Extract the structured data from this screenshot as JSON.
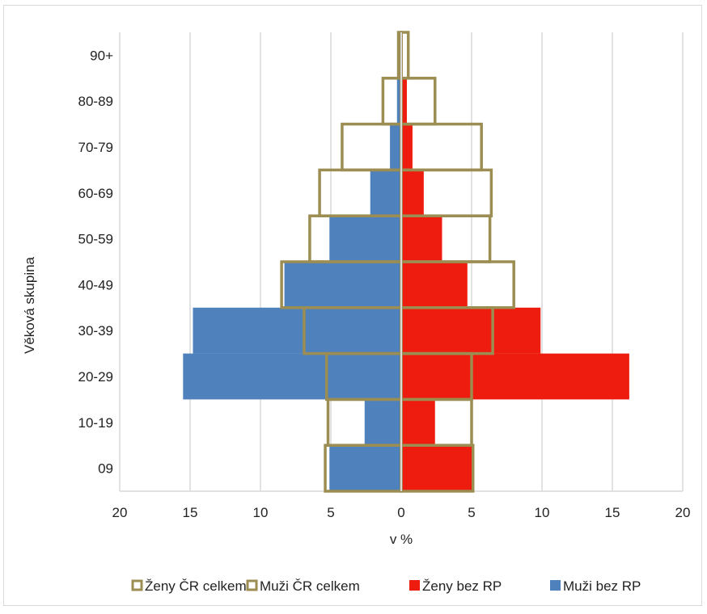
{
  "chart_data": {
    "type": "bar",
    "orientation": "horizontal-pyramid",
    "title": "",
    "xlabel": "v %",
    "ylabel": "Věková skupina",
    "xlim": [
      -20,
      20
    ],
    "x_ticks": [
      20,
      15,
      10,
      5,
      0,
      5,
      10,
      15,
      20
    ],
    "grid": true,
    "legend_position": "bottom",
    "categories": [
      "09",
      "10-19",
      "20-29",
      "30-39",
      "40-49",
      "50-59",
      "60-69",
      "70-79",
      "80-89",
      "90+"
    ],
    "series": [
      {
        "name": "Ženy ČR celkem",
        "side": "right",
        "style": "outline",
        "color": "#9c8d52",
        "values": [
          5.1,
          5.0,
          5.0,
          6.5,
          8.0,
          6.3,
          6.4,
          5.7,
          2.4,
          0.5
        ]
      },
      {
        "name": "Muži ČR celkem",
        "side": "left",
        "style": "outline",
        "color": "#9c8d52",
        "values": [
          5.4,
          5.2,
          5.3,
          6.9,
          8.5,
          6.5,
          5.8,
          4.2,
          1.3,
          0.2
        ]
      },
      {
        "name": "Ženy bez RP",
        "side": "right",
        "style": "fill",
        "color": "#ee1c0e",
        "values": [
          5.0,
          2.4,
          16.2,
          9.9,
          4.7,
          2.9,
          1.6,
          0.8,
          0.4,
          0.1
        ]
      },
      {
        "name": "Muži bez RP",
        "side": "left",
        "style": "fill",
        "color": "#4f81bd",
        "values": [
          5.1,
          2.6,
          15.5,
          14.8,
          8.3,
          5.1,
          2.2,
          0.8,
          0.3,
          0.1
        ]
      }
    ]
  }
}
